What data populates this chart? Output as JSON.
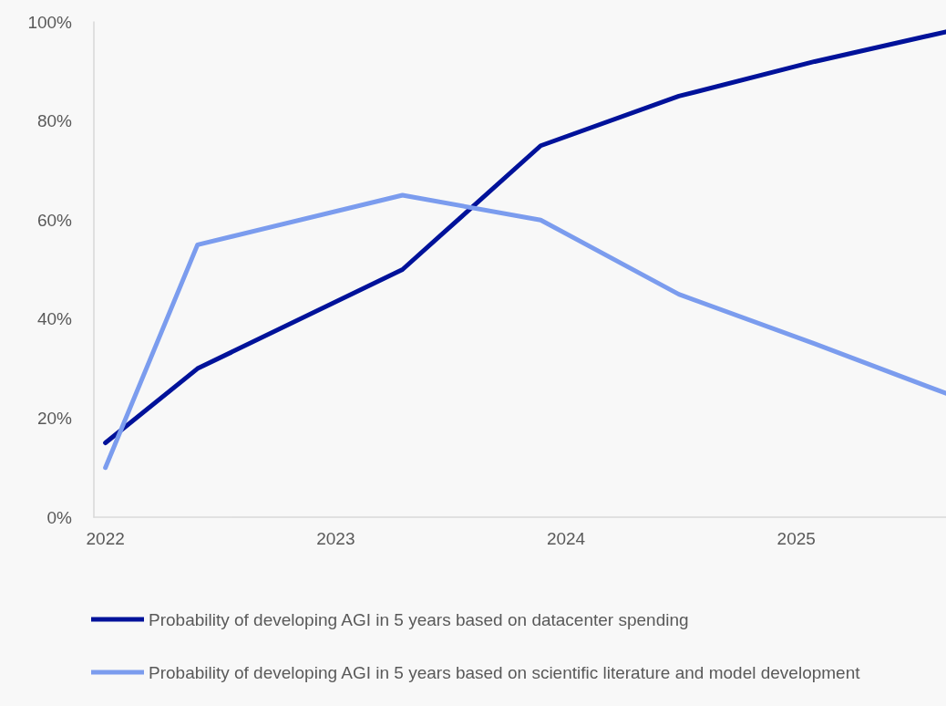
{
  "chart_data": {
    "type": "line",
    "xlim": [
      2021.95,
      2025.65
    ],
    "xticks": [
      2022,
      2023,
      2024,
      2025
    ],
    "ylim": [
      0,
      100
    ],
    "yticks": [
      {
        "value": 0,
        "label": "0%"
      },
      {
        "value": 20,
        "label": "20%"
      },
      {
        "value": 40,
        "label": "40%"
      },
      {
        "value": 60,
        "label": "60%"
      },
      {
        "value": 80,
        "label": "80%"
      },
      {
        "value": 100,
        "label": "100%"
      }
    ],
    "grid": false,
    "legend": "bottom",
    "marker": "none",
    "line_style": "solid",
    "series": [
      {
        "name": "Probability of developing AGI in 5 years based on datacenter spending",
        "color": "#00129a",
        "x": [
          2022.0,
          2022.4,
          2023.29,
          2023.89,
          2024.49,
          2025.08,
          2025.65
        ],
        "values": [
          15,
          30,
          50,
          75,
          85,
          92,
          98
        ]
      },
      {
        "name": "Probability of developing AGI in 5 years based on scientific literature and model development",
        "color": "#7b9cee",
        "x": [
          2022.0,
          2022.4,
          2023.29,
          2023.89,
          2024.49,
          2025.08,
          2025.65
        ],
        "values": [
          10,
          55,
          65,
          60,
          45,
          35,
          25
        ]
      }
    ]
  }
}
